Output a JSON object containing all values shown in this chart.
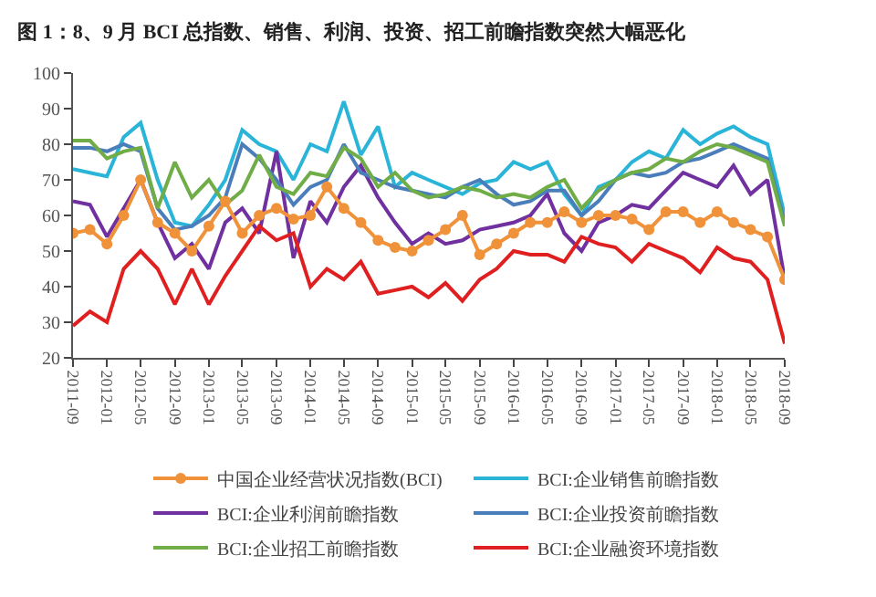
{
  "chart_data": {
    "type": "line",
    "title": "图 1：8、9 月 BCI 总指数、销售、利润、投资、招工前瞻指数突然大幅恶化",
    "x": [
      "2011-09",
      "2011-11",
      "2012-01",
      "2012-03",
      "2012-05",
      "2012-07",
      "2012-09",
      "2012-11",
      "2013-01",
      "2013-03",
      "2013-05",
      "2013-07",
      "2013-09",
      "2013-11",
      "2014-01",
      "2014-03",
      "2014-05",
      "2014-07",
      "2014-09",
      "2014-11",
      "2015-01",
      "2015-03",
      "2015-05",
      "2015-07",
      "2015-09",
      "2015-11",
      "2016-01",
      "2016-03",
      "2016-05",
      "2016-07",
      "2016-09",
      "2016-11",
      "2017-01",
      "2017-03",
      "2017-05",
      "2017-07",
      "2017-09",
      "2017-11",
      "2018-01",
      "2018-03",
      "2018-05",
      "2018-07",
      "2018-09"
    ],
    "series": [
      {
        "name": "中国企业经营状况指数(BCI)",
        "color": "#f0923a",
        "marker": "circle",
        "values": [
          55,
          56,
          52,
          60,
          70,
          58,
          55,
          50,
          57,
          64,
          55,
          60,
          62,
          59,
          60,
          68,
          62,
          58,
          53,
          51,
          50,
          53,
          56,
          60,
          49,
          52,
          55,
          58,
          58,
          61,
          58,
          60,
          60,
          59,
          56,
          61,
          61,
          58,
          61,
          58,
          56,
          54,
          42
        ]
      },
      {
        "name": "BCI:企业销售前瞻指数",
        "color": "#29b4d8",
        "marker": "none",
        "values": [
          73,
          72,
          71,
          82,
          86,
          70,
          58,
          57,
          63,
          70,
          84,
          80,
          78,
          70,
          80,
          78,
          92,
          77,
          85,
          68,
          72,
          70,
          68,
          66,
          69,
          70,
          75,
          73,
          75,
          66,
          60,
          68,
          70,
          75,
          78,
          76,
          84,
          80,
          83,
          85,
          82,
          80,
          60
        ]
      },
      {
        "name": "BCI:企业利润前瞻指数",
        "color": "#7030a0",
        "marker": "none",
        "values": [
          64,
          63,
          54,
          62,
          70,
          58,
          48,
          52,
          45,
          58,
          62,
          55,
          78,
          48,
          64,
          58,
          68,
          74,
          65,
          58,
          52,
          55,
          52,
          53,
          56,
          57,
          58,
          60,
          66,
          55,
          50,
          58,
          60,
          63,
          62,
          67,
          72,
          70,
          68,
          74,
          66,
          70,
          42
        ]
      },
      {
        "name": "BCI:企业投资前瞻指数",
        "color": "#4a7ebb",
        "marker": "none",
        "values": [
          79,
          79,
          78,
          80,
          78,
          62,
          56,
          57,
          60,
          65,
          80,
          76,
          70,
          63,
          68,
          70,
          80,
          72,
          70,
          68,
          67,
          66,
          65,
          68,
          70,
          66,
          63,
          64,
          67,
          67,
          60,
          64,
          70,
          72,
          71,
          72,
          75,
          76,
          78,
          80,
          78,
          76,
          58
        ]
      },
      {
        "name": "BCI:企业招工前瞻指数",
        "color": "#70ad47",
        "marker": "none",
        "values": [
          81,
          81,
          76,
          78,
          79,
          62,
          75,
          65,
          70,
          63,
          67,
          77,
          68,
          66,
          72,
          71,
          79,
          76,
          68,
          72,
          67,
          65,
          66,
          68,
          67,
          65,
          66,
          65,
          68,
          70,
          62,
          67,
          70,
          72,
          73,
          76,
          75,
          78,
          80,
          79,
          77,
          75,
          57
        ]
      },
      {
        "name": "BCI:企业融资环境指数",
        "color": "#e02020",
        "marker": "none",
        "values": [
          29,
          33,
          30,
          45,
          50,
          45,
          35,
          45,
          35,
          43,
          50,
          57,
          53,
          55,
          40,
          45,
          42,
          47,
          38,
          39,
          40,
          37,
          41,
          36,
          42,
          45,
          50,
          49,
          49,
          47,
          54,
          52,
          51,
          47,
          52,
          50,
          48,
          44,
          51,
          48,
          47,
          42,
          24
        ]
      }
    ],
    "xlim": [
      "2011-09",
      "2018-09"
    ],
    "xticks": [
      "2011-09",
      "2012-01",
      "2012-05",
      "2012-09",
      "2013-01",
      "2013-05",
      "2013-09",
      "2014-01",
      "2014-05",
      "2014-09",
      "2015-01",
      "2015-05",
      "2015-09",
      "2016-01",
      "2016-05",
      "2016-09",
      "2017-01",
      "2017-05",
      "2017-09",
      "2018-01",
      "2018-05",
      "2018-09"
    ],
    "ylim": [
      20,
      100
    ],
    "yticks": [
      20,
      30,
      40,
      50,
      60,
      70,
      80,
      90,
      100
    ],
    "legend": "bottom",
    "line_style": "solid"
  }
}
